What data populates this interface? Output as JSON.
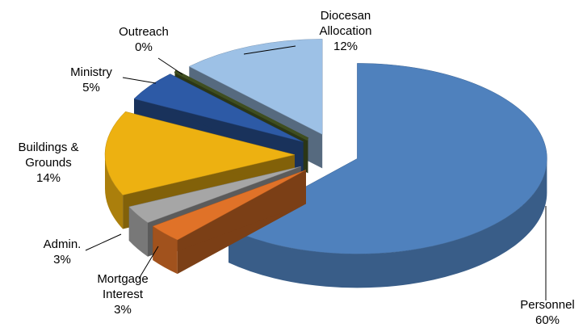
{
  "chart_data": {
    "type": "pie3d",
    "categories": [
      "Personnel",
      "Mortgage Interest",
      "Admin.",
      "Buildings & Grounds",
      "Ministry",
      "Outreach",
      "Diocesan Allocation"
    ],
    "values": [
      60,
      3,
      3,
      14,
      5,
      0,
      12
    ],
    "value_labels": [
      "60%",
      "3%",
      "3%",
      "14%",
      "5%",
      "0%",
      "12%"
    ],
    "colors": [
      "#4f81bd",
      "#e07228",
      "#a6a6a6",
      "#edb111",
      "#2d5aa6",
      "#4f6228",
      "#9dc1e6"
    ]
  }
}
